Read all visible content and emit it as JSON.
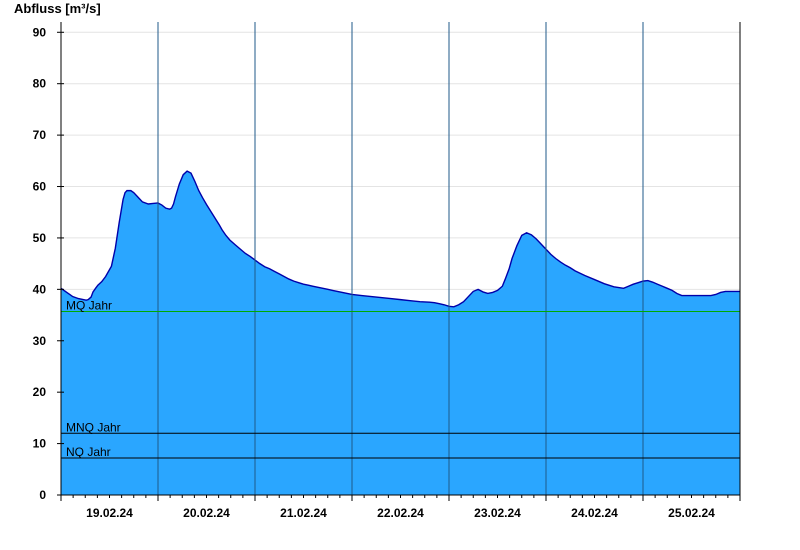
{
  "chart_data": {
    "type": "area",
    "title": "",
    "ylabel": "Abfluss [m³/s]",
    "xlabel": "",
    "ylim": [
      0,
      92
    ],
    "xlim": [
      0,
      7
    ],
    "y_ticks": [
      0,
      10,
      20,
      30,
      40,
      50,
      60,
      70,
      80,
      90
    ],
    "y_tick_labels": [
      "0",
      "10",
      "20",
      "30",
      "40",
      "50",
      "60",
      "70",
      "80",
      "90"
    ],
    "x_date_labels": [
      {
        "x": 0.5,
        "label": "19.02.24"
      },
      {
        "x": 1.5,
        "label": "20.02.24"
      },
      {
        "x": 2.5,
        "label": "21.02.24"
      },
      {
        "x": 3.5,
        "label": "22.02.24"
      },
      {
        "x": 4.5,
        "label": "23.02.24"
      },
      {
        "x": 5.5,
        "label": "24.02.24"
      },
      {
        "x": 6.5,
        "label": "25.02.24"
      }
    ],
    "day_boundaries": [
      1,
      2,
      3,
      4,
      5,
      6
    ],
    "grid": true,
    "colors": {
      "fill": "#2aa6ff",
      "line": "#0000aa",
      "grid": "#e4e4e4",
      "axis": "#000000",
      "mq_line": "#00aa00",
      "ref_line": "#000000",
      "day_line": "#1f5a8a"
    },
    "reference_lines": [
      {
        "name": "MQ Jahr",
        "value": 35.7,
        "color": "#00aa00"
      },
      {
        "name": "MNQ Jahr",
        "value": 12.0,
        "color": "#000000"
      },
      {
        "name": "NQ Jahr",
        "value": 7.2,
        "color": "#000000"
      }
    ],
    "series": [
      {
        "x": [
          0.0,
          0.03,
          0.06,
          0.09,
          0.12,
          0.18,
          0.26,
          0.28,
          0.31,
          0.33,
          0.36,
          0.38,
          0.42,
          0.46,
          0.52,
          0.56,
          0.6,
          0.64,
          0.66,
          0.68,
          0.72,
          0.75,
          0.78,
          0.81,
          0.84,
          0.9,
          0.95,
          1.0,
          1.04,
          1.08,
          1.12,
          1.14,
          1.16,
          1.18,
          1.22,
          1.26,
          1.3,
          1.34,
          1.38,
          1.42,
          1.46,
          1.5,
          1.55,
          1.6,
          1.63,
          1.66,
          1.7,
          1.74,
          1.8,
          1.85,
          1.9,
          1.95,
          2.0,
          2.05,
          2.1,
          2.15,
          2.2,
          2.25,
          2.3,
          2.35,
          2.4,
          2.45,
          2.5,
          2.55,
          2.6,
          2.65,
          2.7,
          2.75,
          2.8,
          2.85,
          2.9,
          2.95,
          3.0,
          3.1,
          3.2,
          3.3,
          3.4,
          3.5,
          3.6,
          3.7,
          3.8,
          3.85,
          3.9,
          3.95,
          4.0,
          4.05,
          4.1,
          4.15,
          4.2,
          4.25,
          4.3,
          4.35,
          4.4,
          4.45,
          4.5,
          4.55,
          4.58,
          4.62,
          4.65,
          4.7,
          4.75,
          4.8,
          4.85,
          4.9,
          4.95,
          5.0,
          5.05,
          5.1,
          5.15,
          5.2,
          5.25,
          5.3,
          5.4,
          5.5,
          5.6,
          5.7,
          5.8,
          5.85,
          5.9,
          5.95,
          6.0,
          6.05,
          6.1,
          6.15,
          6.2,
          6.25,
          6.3,
          6.35,
          6.4,
          6.5,
          6.6,
          6.7,
          6.75,
          6.8,
          6.85,
          6.9,
          7.0
        ],
        "y": [
          40.2,
          39.8,
          39.4,
          39.0,
          38.6,
          38.2,
          37.9,
          38.0,
          38.5,
          39.5,
          40.3,
          40.8,
          41.5,
          42.5,
          44.5,
          48.0,
          53.0,
          57.5,
          58.8,
          59.2,
          59.2,
          58.8,
          58.2,
          57.6,
          57.0,
          56.6,
          56.7,
          56.8,
          56.4,
          55.8,
          55.6,
          55.8,
          56.6,
          58.0,
          60.5,
          62.3,
          63.0,
          62.6,
          61.0,
          59.2,
          57.8,
          56.5,
          55.0,
          53.5,
          52.6,
          51.6,
          50.5,
          49.6,
          48.6,
          47.8,
          47.0,
          46.4,
          45.7,
          45.0,
          44.4,
          44.0,
          43.5,
          43.0,
          42.5,
          42.0,
          41.6,
          41.3,
          41.0,
          40.8,
          40.6,
          40.4,
          40.2,
          40.0,
          39.8,
          39.6,
          39.4,
          39.2,
          39.0,
          38.8,
          38.6,
          38.4,
          38.2,
          38.0,
          37.8,
          37.6,
          37.5,
          37.4,
          37.2,
          37.0,
          36.7,
          36.6,
          37.0,
          37.6,
          38.6,
          39.6,
          40.0,
          39.5,
          39.2,
          39.4,
          39.8,
          40.6,
          42.0,
          44.0,
          46.0,
          48.5,
          50.5,
          51.0,
          50.6,
          49.8,
          48.8,
          47.8,
          46.8,
          46.0,
          45.3,
          44.7,
          44.2,
          43.6,
          42.7,
          41.9,
          41.1,
          40.5,
          40.2,
          40.6,
          41.0,
          41.3,
          41.6,
          41.7,
          41.4,
          41.0,
          40.6,
          40.2,
          39.8,
          39.2,
          38.8,
          38.8,
          38.8,
          38.8,
          39.0,
          39.4,
          39.6,
          39.6,
          39.6
        ]
      }
    ]
  }
}
